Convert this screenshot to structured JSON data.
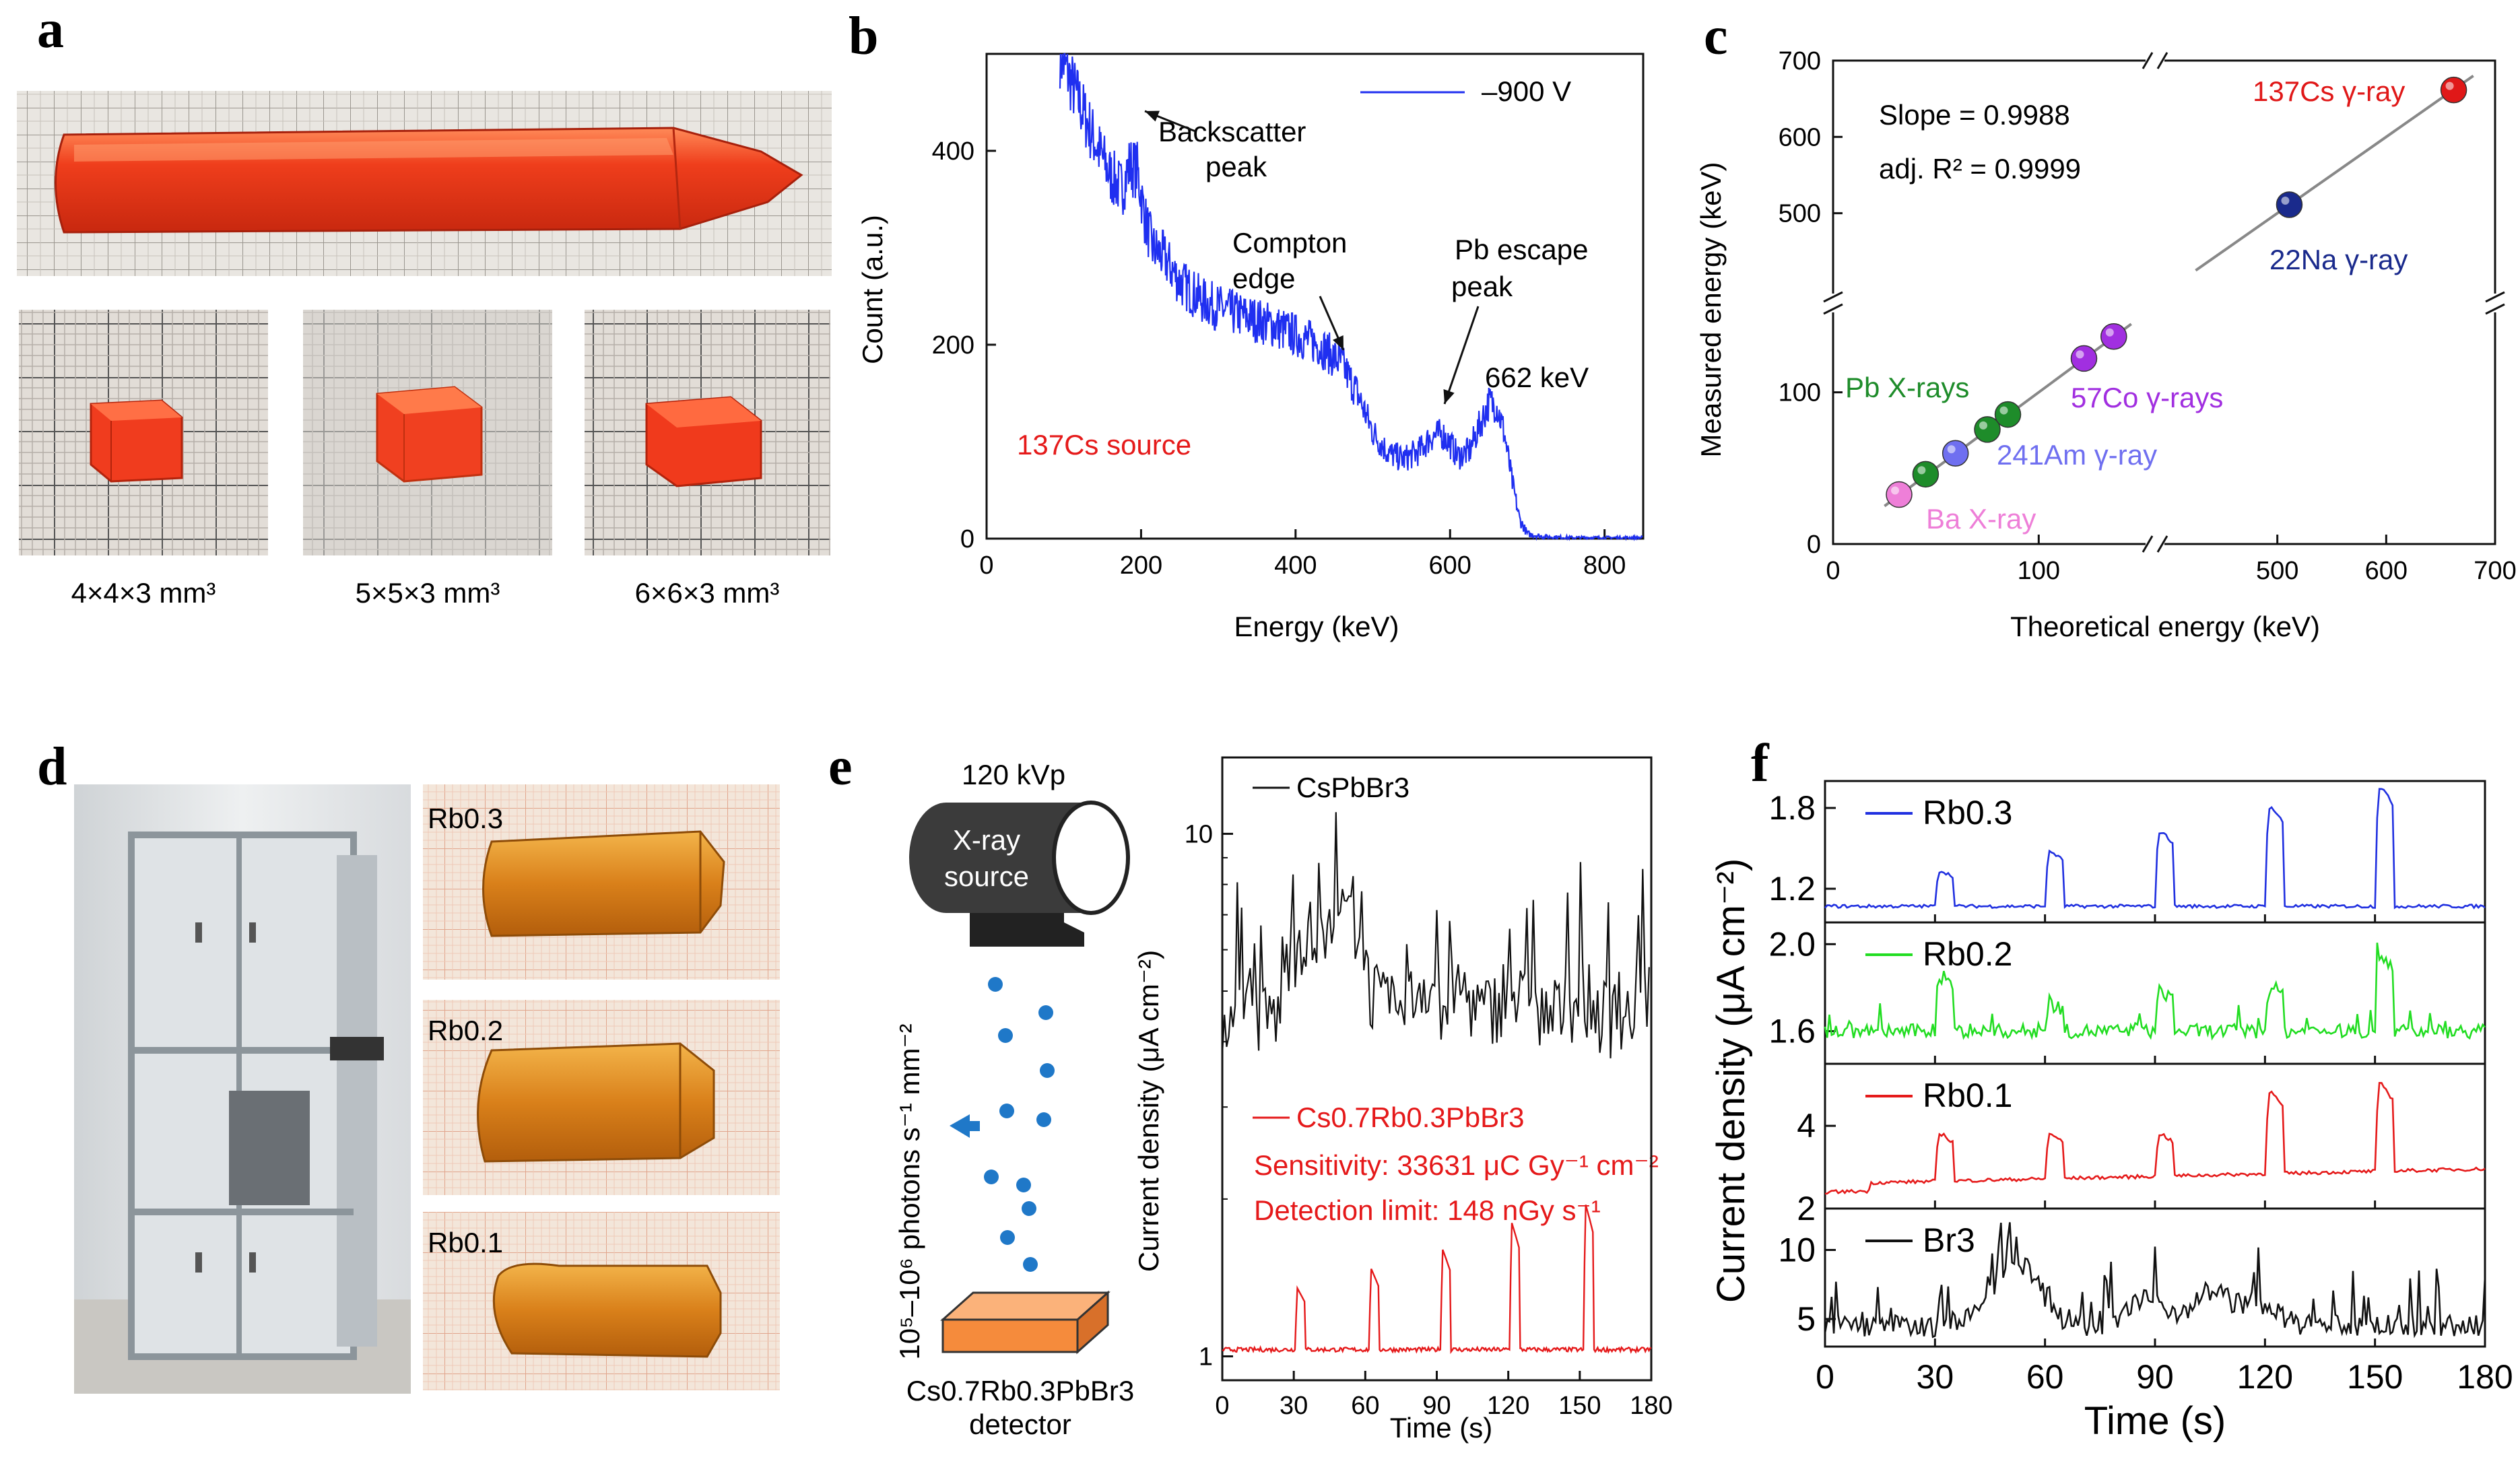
{
  "panel_labels": {
    "a": "a",
    "b": "b",
    "c": "c",
    "d": "d",
    "e": "e",
    "f": "f"
  },
  "panel_a": {
    "crystal_caption_1": "4×4×3 mm³",
    "crystal_caption_2": "5×5×3 mm³",
    "crystal_caption_3": "6×6×3 mm³",
    "colors": {
      "crystal": "#ee3b1a",
      "crystal_light": "#ff7a4a",
      "grid_bg": "#e8e4df"
    }
  },
  "panel_d": {
    "sample_labels": [
      "Rb0.3",
      "Rb0.2",
      "Rb0.1"
    ],
    "colors": {
      "crystal": "#d9801a",
      "paper": "#f1e3d6"
    }
  },
  "panel_e_schematic": {
    "tube_voltage": "120 kVp",
    "source_line1": "X-ray",
    "source_line2": "source",
    "flux_label": "10⁵–10⁶ photons s⁻¹ mm⁻²",
    "detector_line1": "Cs0.7Rb0.3PbBr3",
    "detector_line2": "detector",
    "colors": {
      "detector": "#f58b3c",
      "photon": "#1f78c8",
      "tube": "#3b3b3b"
    }
  },
  "chart_data": [
    {
      "id": "b",
      "type": "line",
      "xlabel": "Energy (keV)",
      "ylabel": "Count (a.u.)",
      "xlim": [
        0,
        850
      ],
      "ylim": [
        0,
        500
      ],
      "xticks": [
        0,
        200,
        400,
        600,
        800
      ],
      "yticks": [
        0,
        200,
        400
      ],
      "legend": "–900 V",
      "source_label": "137Cs source",
      "annotations": {
        "backscatter_1": "Backscatter",
        "backscatter_2": "peak",
        "compton_1": "Compton",
        "compton_2": "edge",
        "escape_1": "Pb escape",
        "escape_2": "peak",
        "photopeak": "662 keV"
      },
      "series": [
        {
          "name": "–900 V",
          "color": "#1f2ff0",
          "x": [
            95,
            120,
            140,
            160,
            175,
            185,
            195,
            205,
            215,
            230,
            250,
            280,
            310,
            340,
            370,
            400,
            430,
            460,
            480,
            500,
            520,
            540,
            560,
            575,
            590,
            600,
            610,
            625,
            640,
            650,
            660,
            670,
            680,
            690,
            700,
            720,
            760,
            850
          ],
          "values": [
            500,
            450,
            410,
            375,
            360,
            385,
            380,
            330,
            300,
            290,
            265,
            245,
            235,
            228,
            220,
            210,
            200,
            180,
            150,
            110,
            88,
            82,
            90,
            105,
            108,
            98,
            85,
            90,
            120,
            140,
            138,
            110,
            60,
            20,
            5,
            2,
            1,
            1
          ]
        }
      ]
    },
    {
      "id": "c",
      "type": "scatter",
      "xlabel": "Theoretical energy (keV)",
      "ylabel": "Measured energy (keV)",
      "xticks": [
        0,
        100,
        500,
        600,
        700
      ],
      "yticks": [
        0,
        100,
        500,
        600,
        700
      ],
      "axis_break": "//",
      "slope_text": "Slope = 0.9988",
      "r2_text": "adj. R² = 0.9999",
      "points": [
        {
          "x": 32.1,
          "y": 32.6,
          "group": "Ba X-ray",
          "color": "#ee7fd8"
        },
        {
          "x": 45,
          "y": 46,
          "group": "Pb X-rays",
          "color": "#1e8c2a"
        },
        {
          "x": 59.5,
          "y": 59.8,
          "group": "241Am γ-ray",
          "color": "#6f6ff0"
        },
        {
          "x": 75,
          "y": 75.5,
          "group": "Pb X-rays",
          "color": "#1e8c2a"
        },
        {
          "x": 85,
          "y": 85.4,
          "group": "Pb X-rays",
          "color": "#1e8c2a"
        },
        {
          "x": 122,
          "y": 122.3,
          "group": "57Co γ-rays",
          "color": "#a12fe0"
        },
        {
          "x": 136.5,
          "y": 136.8,
          "group": "57Co γ-rays",
          "color": "#a12fe0"
        },
        {
          "x": 511,
          "y": 511.2,
          "group": "22Na γ-ray",
          "color": "#1a2a8c"
        },
        {
          "x": 662,
          "y": 661.5,
          "group": "137Cs γ-ray",
          "color": "#e01818"
        }
      ],
      "labels": {
        "ba": "Ba X-ray",
        "pb": "Pb X-rays",
        "am": "241Am γ-ray",
        "co": "57Co γ-rays",
        "na": "22Na γ-ray",
        "cs": "137Cs γ-ray"
      }
    },
    {
      "id": "e",
      "type": "line",
      "xlabel": "Time (s)",
      "ylabel": "Current density (μA cm⁻²)",
      "xlim": [
        0,
        180
      ],
      "yscale": "log",
      "ylim": [
        0.9,
        14
      ],
      "xticks": [
        0,
        30,
        60,
        90,
        120,
        150,
        180
      ],
      "yticks": [
        1,
        10
      ],
      "legend": [
        "CsPbBr3",
        "Cs0.7Rb0.3PbBr3"
      ],
      "sensitivity": "Sensitivity: 33631 μC Gy⁻¹ cm⁻²",
      "detection_limit": "Detection limit: 148 nGy s⁻¹",
      "series": [
        {
          "name": "CsPbBr3",
          "color": "#111111",
          "baseline": 4.5,
          "noise": 0.45,
          "peaks": [
            [
              50,
              10.8
            ],
            [
              35,
              8.5
            ],
            [
              60,
              7.5
            ],
            [
              85,
              8
            ],
            [
              100,
              7
            ],
            [
              120,
              7
            ],
            [
              150,
              6.5
            ],
            [
              180,
              6.8
            ]
          ]
        },
        {
          "name": "Cs0.7Rb0.3PbBr3",
          "color": "#e5191a",
          "baseline": 1.03,
          "noise": 0.01,
          "peaks": [
            [
              32,
              1.35
            ],
            [
              63,
              1.47
            ],
            [
              93,
              1.6
            ],
            [
              122,
              1.8
            ],
            [
              153,
              1.95
            ]
          ]
        }
      ]
    },
    {
      "id": "f",
      "type": "line",
      "xlabel": "Time (s)",
      "ylabel": "Current density (μA cm⁻²)",
      "xlim": [
        0,
        180
      ],
      "xticks": [
        0,
        30,
        60,
        90,
        120,
        150,
        180
      ],
      "subplots": [
        {
          "name": "Rb0.3",
          "color": "#2030e0",
          "ylim": [
            0.95,
            2.0
          ],
          "yticks": [
            1.2,
            1.8
          ],
          "tick_labels": [
            "1.2",
            "1.8"
          ],
          "baseline": 1.07,
          "pulses": [
            [
              32,
              1.33
            ],
            [
              62,
              1.47
            ],
            [
              92,
              1.62
            ],
            [
              122,
              1.8
            ],
            [
              152,
              1.95
            ]
          ]
        },
        {
          "name": "Rb0.2",
          "color": "#22dd22",
          "ylim": [
            1.45,
            2.1
          ],
          "yticks": [
            1.6,
            2.0
          ],
          "tick_labels": [
            "1.6",
            "2.0"
          ],
          "baseline": 1.6,
          "pulses": [
            [
              32,
              1.85
            ],
            [
              62,
              1.72
            ],
            [
              92,
              1.78
            ],
            [
              122,
              1.8
            ],
            [
              152,
              1.95
            ]
          ]
        },
        {
          "name": "Rb0.1",
          "color": "#e51a1a",
          "ylim": [
            2,
            5.5
          ],
          "yticks": [
            2,
            4
          ],
          "tick_labels": [
            "2",
            "4"
          ],
          "baseline": 2.4,
          "pulses": [
            [
              32,
              3.8
            ],
            [
              62,
              3.8
            ],
            [
              92,
              3.8
            ],
            [
              122,
              4.8
            ],
            [
              152,
              5.0
            ]
          ]
        },
        {
          "name": "Br3",
          "color": "#111111",
          "ylim": [
            3,
            13
          ],
          "yticks": [
            5,
            10
          ],
          "tick_labels": [
            "5",
            "10"
          ],
          "baseline": 4.5,
          "pulses": [
            [
              48,
              10
            ],
            [
              55,
              12
            ],
            [
              88,
              9
            ],
            [
              105,
              10
            ],
            [
              118,
              8
            ]
          ]
        }
      ]
    }
  ]
}
